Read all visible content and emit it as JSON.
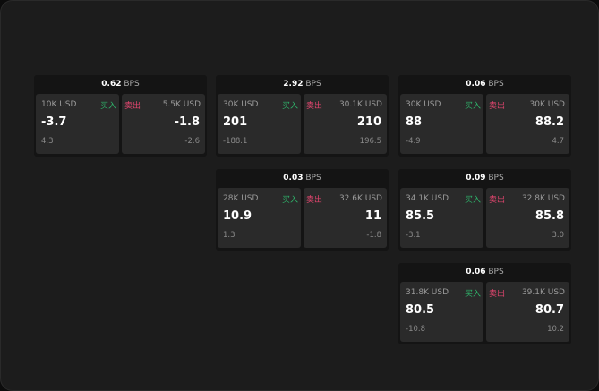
{
  "unit": "BPS",
  "buy_label": "买入",
  "sell_label": "卖出",
  "colors": {
    "buy": "#2fb36a",
    "sell": "#e0456e"
  },
  "cards": [
    {
      "spread": "0.62",
      "buy": {
        "qty": "10K USD",
        "price": "-3.7",
        "change": "4.3"
      },
      "sell": {
        "qty": "5.5K USD",
        "price": "-1.8",
        "change": "-2.6"
      }
    },
    {
      "spread": "2.92",
      "buy": {
        "qty": "30K USD",
        "price": "201",
        "change": "-188.1"
      },
      "sell": {
        "qty": "30.1K USD",
        "price": "210",
        "change": "196.5"
      }
    },
    {
      "spread": "0.06",
      "buy": {
        "qty": "30K USD",
        "price": "88",
        "change": "-4.9"
      },
      "sell": {
        "qty": "30K USD",
        "price": "88.2",
        "change": "4.7"
      }
    },
    {
      "spread": "0.03",
      "buy": {
        "qty": "28K USD",
        "price": "10.9",
        "change": "1.3"
      },
      "sell": {
        "qty": "32.6K USD",
        "price": "11",
        "change": "-1.8"
      }
    },
    {
      "spread": "0.09",
      "buy": {
        "qty": "34.1K USD",
        "price": "85.5",
        "change": "-3.1"
      },
      "sell": {
        "qty": "32.8K USD",
        "price": "85.8",
        "change": "3.0"
      }
    },
    {
      "spread": "0.06",
      "buy": {
        "qty": "31.8K USD",
        "price": "80.5",
        "change": "-10.8"
      },
      "sell": {
        "qty": "39.1K USD",
        "price": "80.7",
        "change": "10.2"
      }
    }
  ]
}
